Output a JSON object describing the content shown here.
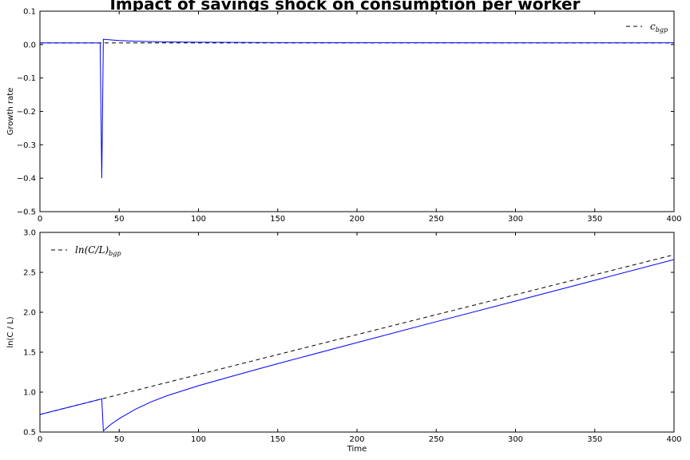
{
  "figure": {
    "title": "Impact of savings shock on consumption per worker"
  },
  "chart_data": [
    {
      "type": "line",
      "xlabel": "",
      "ylabel": "Growth rate",
      "xlim": [
        0,
        400
      ],
      "ylim": [
        -0.5,
        0.1
      ],
      "xticks": [
        0,
        50,
        100,
        150,
        200,
        250,
        300,
        350,
        400
      ],
      "yticks": [
        -0.5,
        -0.4,
        -0.3,
        -0.2,
        -0.1,
        0.0,
        0.1
      ],
      "xtick_labels": [
        "0",
        "50",
        "100",
        "150",
        "200",
        "250",
        "300",
        "350",
        "400"
      ],
      "ytick_labels": [
        "−0.5",
        "−0.4",
        "−0.3",
        "−0.2",
        "−0.1",
        "0.0",
        "0.1"
      ],
      "legend": {
        "position": "top-right",
        "label": "c",
        "subscript": "bgp"
      },
      "series": [
        {
          "name": "c_bgp",
          "color": "#000000",
          "style": "dashed",
          "x": [
            0,
            400
          ],
          "y": [
            0.005,
            0.005
          ]
        },
        {
          "color": "#0000ff",
          "style": "solid",
          "x": [
            0,
            38,
            38.5,
            39,
            39.5,
            40,
            45,
            50,
            60,
            80,
            100,
            150,
            200,
            300,
            400
          ],
          "y": [
            0.005,
            0.005,
            -0.2,
            -0.4,
            -0.2,
            0.016,
            0.014,
            0.012,
            0.01,
            0.008,
            0.007,
            0.006,
            0.0057,
            0.0053,
            0.0052
          ]
        }
      ]
    },
    {
      "type": "line",
      "xlabel": "Time",
      "ylabel": "ln(C / L)",
      "xlim": [
        0,
        400
      ],
      "ylim": [
        0.5,
        3.0
      ],
      "xticks": [
        0,
        50,
        100,
        150,
        200,
        250,
        300,
        350,
        400
      ],
      "yticks": [
        0.5,
        1.0,
        1.5,
        2.0,
        2.5,
        3.0
      ],
      "xtick_labels": [
        "0",
        "50",
        "100",
        "150",
        "200",
        "250",
        "300",
        "350",
        "400"
      ],
      "ytick_labels": [
        "0.5",
        "1.0",
        "1.5",
        "2.0",
        "2.5",
        "3.0"
      ],
      "legend": {
        "position": "top-left",
        "label": "ln(C/L)",
        "subscript": "bgp"
      },
      "series": [
        {
          "name": "ln(C/L)_bgp",
          "color": "#000000",
          "style": "dashed",
          "x": [
            0,
            400
          ],
          "y": [
            0.72,
            2.72
          ]
        },
        {
          "color": "#0000ff",
          "style": "solid",
          "x": [
            0,
            39,
            39.5,
            40,
            45,
            50,
            60,
            70,
            80,
            100,
            125,
            150,
            200,
            250,
            300,
            350,
            400
          ],
          "y": [
            0.72,
            0.915,
            0.72,
            0.515,
            0.6,
            0.668,
            0.783,
            0.877,
            0.954,
            1.08,
            1.22,
            1.356,
            1.62,
            1.882,
            2.14,
            2.4,
            2.66
          ]
        }
      ]
    }
  ]
}
